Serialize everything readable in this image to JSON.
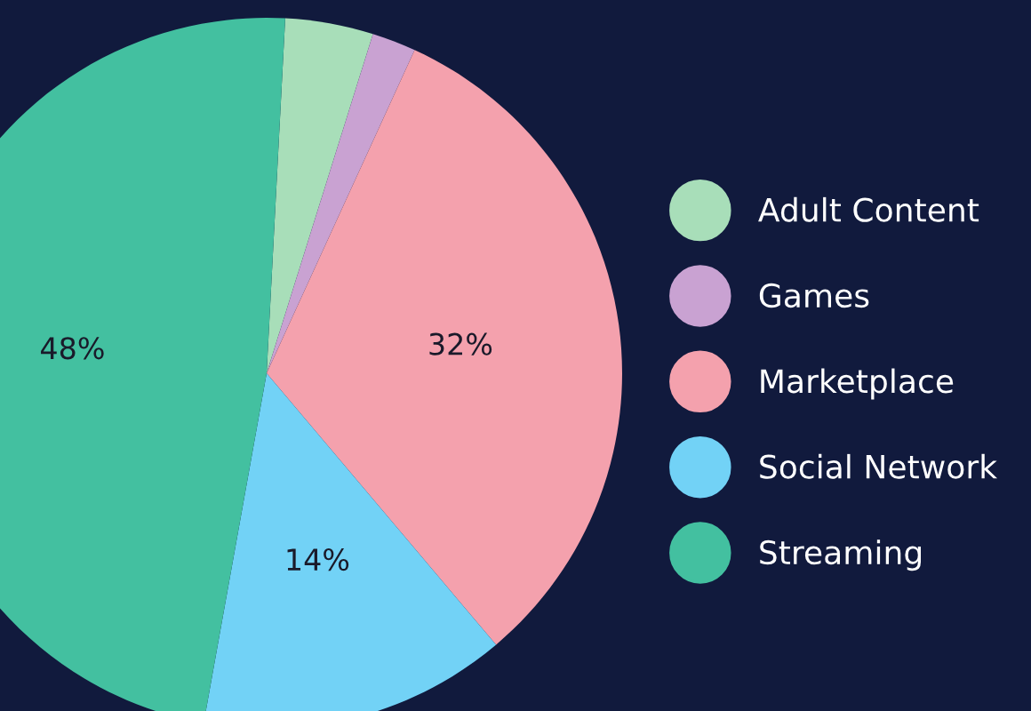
{
  "chart_data": {
    "type": "pie",
    "categories": [
      "Adult Content",
      "Games",
      "Marketplace",
      "Social Network",
      "Streaming"
    ],
    "values": [
      4,
      2,
      32,
      14,
      48
    ],
    "colors": [
      "#a8deb9",
      "#c9a2d2",
      "#f4a1ad",
      "#72d2f6",
      "#43c0a0"
    ],
    "value_labels": [
      null,
      null,
      "32%",
      "14%",
      "48%"
    ],
    "legend": "right"
  }
}
